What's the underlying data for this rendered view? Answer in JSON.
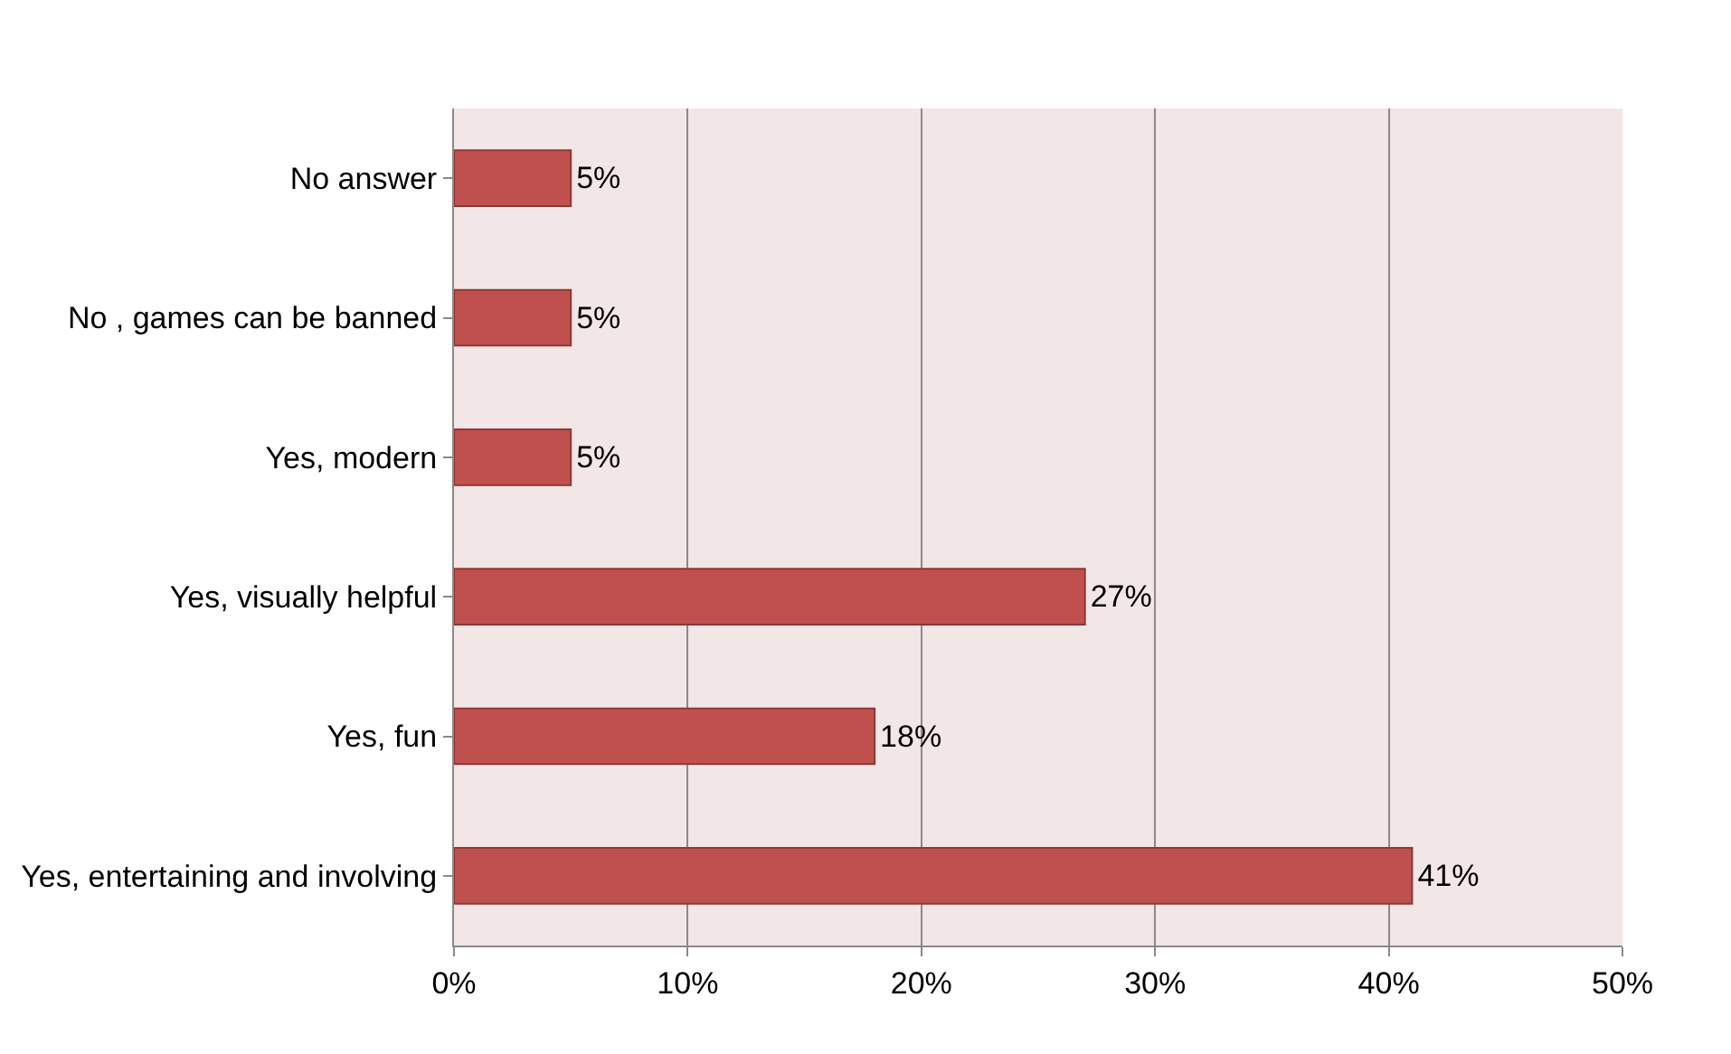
{
  "chart_data": {
    "type": "bar",
    "orientation": "horizontal",
    "categories": [
      "No answer",
      "No , games can be banned",
      "Yes, modern",
      "Yes, visually helpful",
      "Yes, fun",
      "Yes, entertaining and involving"
    ],
    "series": [
      {
        "color": "#c0504d",
        "values": [
          5,
          5,
          5,
          27,
          18,
          41
        ],
        "value_labels": [
          "5%",
          "5%",
          "5%",
          "27%",
          "18%",
          "41%"
        ]
      }
    ],
    "xlim": [
      0,
      50
    ],
    "xticks": [
      {
        "value": 0,
        "label": "0%"
      },
      {
        "value": 10,
        "label": "10%"
      },
      {
        "value": 20,
        "label": "20%"
      },
      {
        "value": 30,
        "label": "30%"
      },
      {
        "value": 40,
        "label": "40%"
      },
      {
        "value": 50,
        "label": "50%"
      }
    ],
    "grid": "x"
  }
}
